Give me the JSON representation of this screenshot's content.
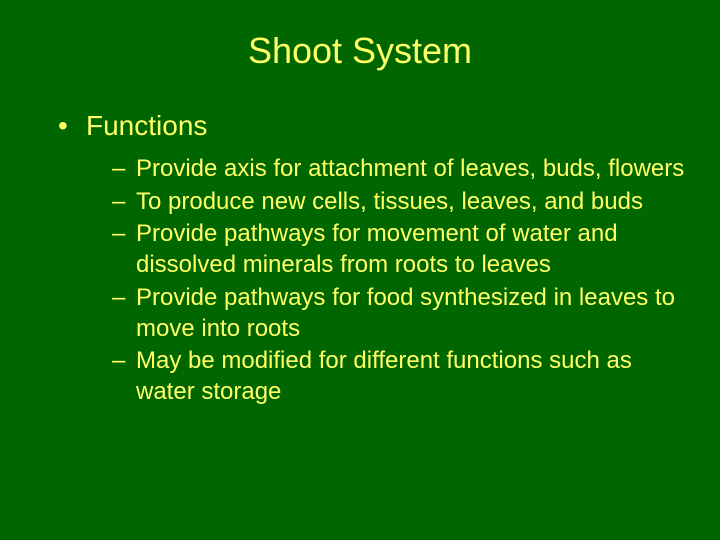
{
  "background_color": "#006600",
  "text_color": "#ffff66",
  "title": {
    "text": "Shoot System",
    "fontsize": 36
  },
  "level1": {
    "fontsize": 28,
    "items": [
      {
        "text": "Functions"
      }
    ]
  },
  "level2": {
    "fontsize": 24,
    "items": [
      {
        "text": "Provide axis for attachment of leaves, buds, flowers"
      },
      {
        "text": "To produce new cells, tissues, leaves, and buds"
      },
      {
        "text": "Provide pathways for movement of water and dissolved minerals from roots to leaves"
      },
      {
        "text": "Provide pathways for food synthesized in leaves to move into roots"
      },
      {
        "text": "May be modified for different functions such as water storage"
      }
    ]
  }
}
